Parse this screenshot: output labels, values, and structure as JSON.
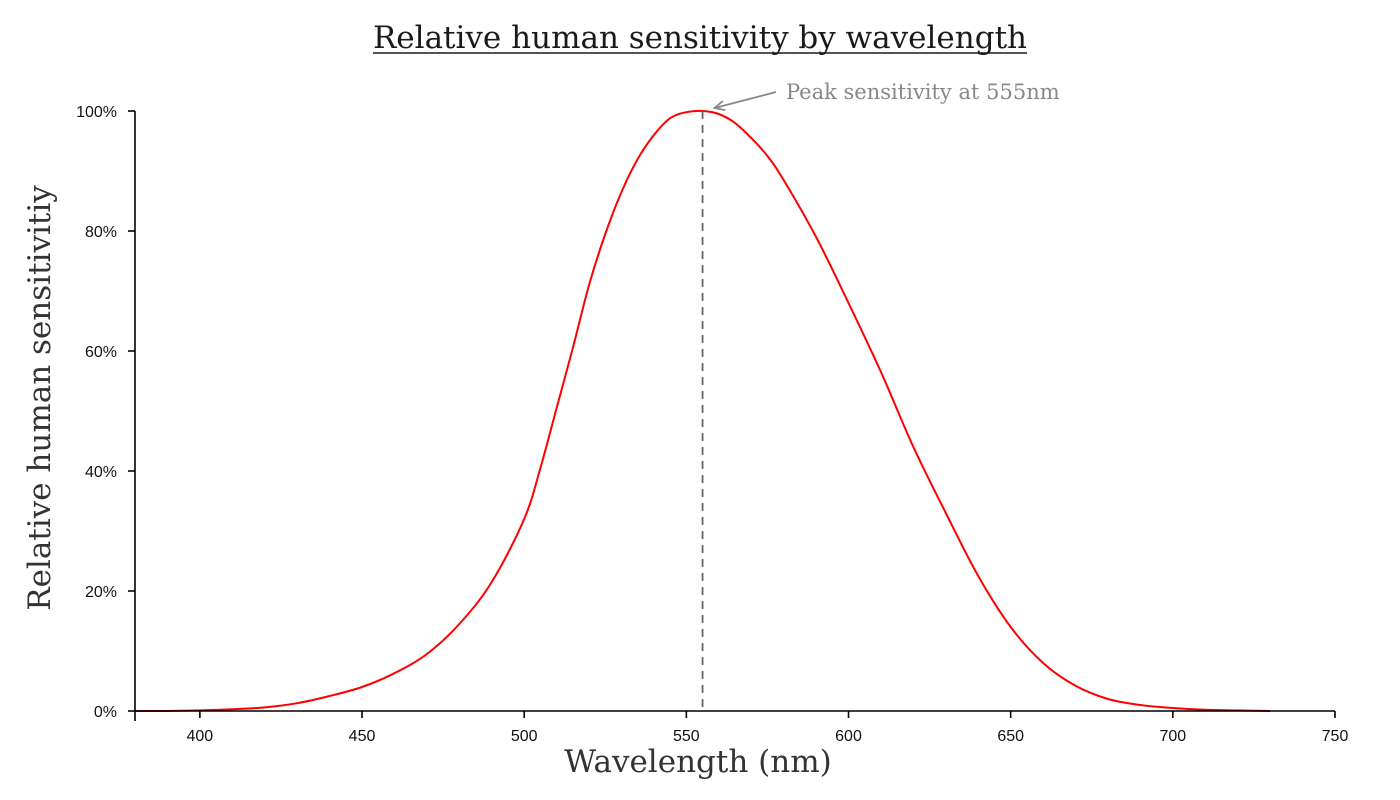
{
  "colors": {
    "line": "#ff0000",
    "axis": "#000000",
    "peak_marker": "#666666",
    "annotation": "#888888"
  },
  "chart_data": {
    "type": "line",
    "title": "Relative human sensitivity by wavelength",
    "xlabel": "Wavelength (nm)",
    "ylabel": "Relative human sensitivitiy",
    "xlim": [
      380,
      750
    ],
    "ylim": [
      0,
      100
    ],
    "grid": false,
    "x_ticks": [
      400,
      450,
      500,
      550,
      600,
      650,
      700,
      750
    ],
    "y_ticks": [
      0,
      20,
      40,
      60,
      80,
      100
    ],
    "y_tick_labels": [
      "0%",
      "20%",
      "40%",
      "60%",
      "80%",
      "100%"
    ],
    "peak": {
      "x": 555,
      "y": 100
    },
    "annotation": "Peak sensitivity at 555nm",
    "series": [
      {
        "name": "Relative human sensitivity",
        "x": [
          380,
          390,
          400,
          410,
          420,
          430,
          440,
          450,
          460,
          470,
          480,
          490,
          500,
          505,
          510,
          515,
          520,
          525,
          530,
          535,
          540,
          545,
          550,
          555,
          560,
          565,
          570,
          575,
          580,
          590,
          600,
          610,
          620,
          630,
          640,
          650,
          660,
          670,
          680,
          690,
          700,
          710,
          720,
          730
        ],
        "values": [
          0.0,
          0.0,
          0.1,
          0.3,
          0.6,
          1.3,
          2.5,
          4.0,
          6.3,
          9.5,
          14.5,
          21.5,
          32.0,
          40.5,
          50.5,
          60.5,
          71.0,
          79.5,
          86.5,
          92.0,
          96.0,
          98.8,
          99.8,
          100.0,
          99.5,
          98.0,
          95.5,
          92.5,
          88.5,
          79.0,
          68.0,
          56.5,
          44.0,
          33.0,
          22.5,
          14.0,
          8.0,
          4.2,
          2.0,
          1.0,
          0.5,
          0.2,
          0.1,
          0.0
        ]
      }
    ]
  }
}
